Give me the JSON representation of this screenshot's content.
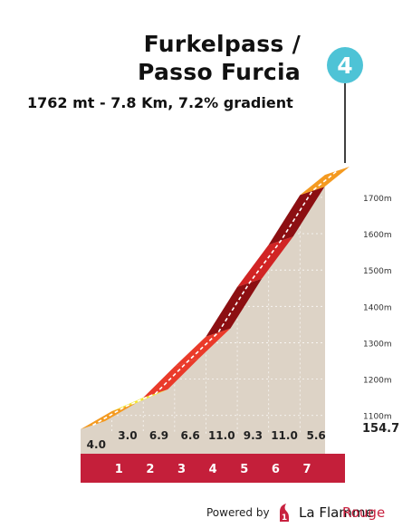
{
  "title_line1": "Furkelpass /",
  "title_line2": "Passo Furcia",
  "subtitle": "1762 mt - 7.8 Km, 7.2% gradient",
  "marker_label": "4",
  "footer": {
    "powered_by": "Powered by",
    "brand_a": "La Flamme",
    "brand_b": "Rouge"
  },
  "colors": {
    "base_band": "#c41f3a",
    "terrain": "#ddd3c6",
    "side": "#b4a999",
    "marker": "#4ec3d6",
    "gradient_4_6": "#f49a20",
    "gradient_6_8": "#ea3a2a",
    "gradient_8_10": "#d12424",
    "gradient_10_plus": "#8c0f12",
    "gradient_low": "#f5e62a"
  },
  "chart_data": {
    "type": "area",
    "km_labels": [
      "1",
      "2",
      "3",
      "4",
      "5",
      "6",
      "7"
    ],
    "gradient_labels": [
      "4.0",
      "3.0",
      "6.9",
      "6.6",
      "11.0",
      "9.3",
      "11.0",
      "5.6"
    ],
    "km_start": [
      0,
      1,
      2,
      3,
      4,
      5,
      6,
      7
    ],
    "gradients": [
      4.0,
      3.0,
      6.9,
      6.6,
      11.0,
      9.3,
      11.0,
      5.6
    ],
    "elevation_ticks": [
      "1100m",
      "1200m",
      "1300m",
      "1400m",
      "1500m",
      "1600m",
      "1700m"
    ],
    "elevation_values": [
      1100,
      1200,
      1300,
      1400,
      1500,
      1600,
      1700
    ],
    "base_label": "154.7",
    "base_value": 154.7,
    "summit_elevation": 1762,
    "length_km": 7.8,
    "average_gradient": 7.2,
    "ylim": [
      1062,
      1762
    ],
    "xlim": [
      0,
      7.8
    ]
  }
}
